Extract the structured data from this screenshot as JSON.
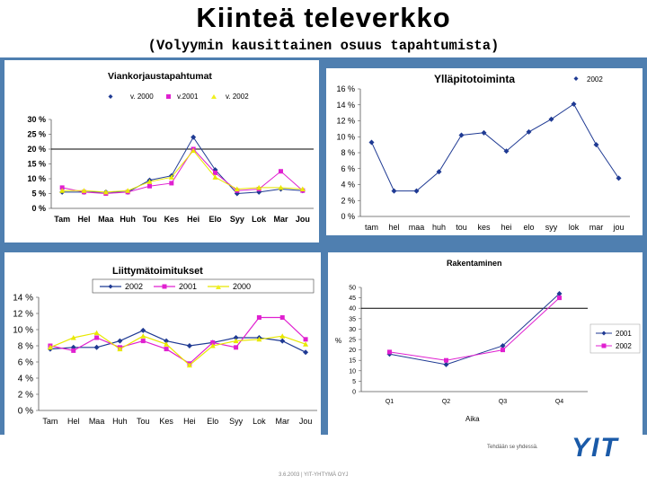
{
  "slide": {
    "title": "Kiinteä televerkko",
    "subtitle": "(Volyymin kausittainen osuus tapahtumista)",
    "tagline": "Tehdään se yhdessä.",
    "logo": "YIT",
    "footer": "3.6.2003   |   YIT-YHTYMÄ OYJ"
  },
  "colors": {
    "blue": "#1f3a93",
    "magenta": "#e020d0",
    "yellow": "#f0f020",
    "frame": "#4f7fb0"
  },
  "chart_data": [
    {
      "type": "line",
      "title": "Viankorjaustapahtumat",
      "categories": [
        "Tam",
        "Hel",
        "Maa",
        "Huh",
        "Tou",
        "Kes",
        "Hei",
        "Elo",
        "Syy",
        "Lok",
        "Mar",
        "Jou"
      ],
      "y_ticks": [
        "0 %",
        "5 %",
        "10 %",
        "15 %",
        "20 %",
        "25 %",
        "30 %"
      ],
      "ylim": [
        0,
        30
      ],
      "reference_line": 20,
      "series": [
        {
          "name": "v. 2000",
          "values": [
            5.5,
            5.5,
            5.5,
            5.5,
            9.5,
            11,
            24,
            13,
            5,
            5.5,
            6.5,
            6
          ]
        },
        {
          "name": "v.2001",
          "values": [
            7,
            5.5,
            5,
            5.5,
            7.5,
            8.5,
            20,
            12,
            6,
            6.5,
            12.5,
            6
          ]
        },
        {
          "name": "v. 2002",
          "values": [
            6,
            6,
            5.5,
            6,
            9,
            10.5,
            19.5,
            10.5,
            6.5,
            7,
            7,
            6.5
          ]
        }
      ]
    },
    {
      "type": "line",
      "title": "Ylläpitotoiminta",
      "categories": [
        "tam",
        "hel",
        "maa",
        "huh",
        "tou",
        "kes",
        "hei",
        "elo",
        "syy",
        "lok",
        "mar",
        "jou"
      ],
      "y_ticks": [
        "0 %",
        "2 %",
        "4 %",
        "6 %",
        "8 %",
        "10 %",
        "12 %",
        "14 %",
        "16 %"
      ],
      "ylim": [
        0,
        16
      ],
      "series": [
        {
          "name": "2002",
          "values": [
            9.3,
            3.2,
            3.2,
            5.6,
            10.2,
            10.5,
            8.2,
            10.6,
            12.2,
            14.1,
            9,
            4.8
          ]
        }
      ]
    },
    {
      "type": "line",
      "title": "Liittymätoimitukset",
      "categories": [
        "Tam",
        "Hel",
        "Maa",
        "Huh",
        "Tou",
        "Kes",
        "Hei",
        "Elo",
        "Syy",
        "Lok",
        "Mar",
        "Jou"
      ],
      "y_ticks": [
        "0 %",
        "2 %",
        "4 %",
        "6 %",
        "8 %",
        "10 %",
        "12 %",
        "14 %"
      ],
      "ylim": [
        0,
        14
      ],
      "series": [
        {
          "name": "2002",
          "values": [
            7.6,
            7.8,
            7.8,
            8.6,
            9.9,
            8.6,
            8.0,
            8.4,
            9.0,
            9.0,
            8.6,
            7.2
          ]
        },
        {
          "name": "2001",
          "values": [
            8.0,
            7.4,
            9.0,
            7.8,
            8.6,
            7.6,
            5.8,
            8.4,
            7.8,
            11.5,
            11.5,
            8.8
          ]
        },
        {
          "name": "2000",
          "values": [
            7.8,
            9.0,
            9.6,
            7.6,
            9.2,
            8.2,
            5.6,
            8.0,
            8.6,
            8.8,
            9.2,
            8.2
          ]
        }
      ]
    },
    {
      "type": "line",
      "title": "Rakentaminen",
      "categories": [
        "Q1",
        "Q2",
        "Q3",
        "Q4"
      ],
      "y_ticks": [
        "0",
        "5",
        "10",
        "15",
        "20",
        "25",
        "30",
        "35",
        "40",
        "45",
        "50"
      ],
      "ylim": [
        0,
        50
      ],
      "reference_line": 40,
      "xlabel": "Aika",
      "ylabel": "%",
      "series": [
        {
          "name": "2001",
          "values": [
            18,
            13,
            22,
            47
          ]
        },
        {
          "name": "2002",
          "values": [
            19,
            15,
            20,
            45
          ]
        }
      ]
    }
  ]
}
